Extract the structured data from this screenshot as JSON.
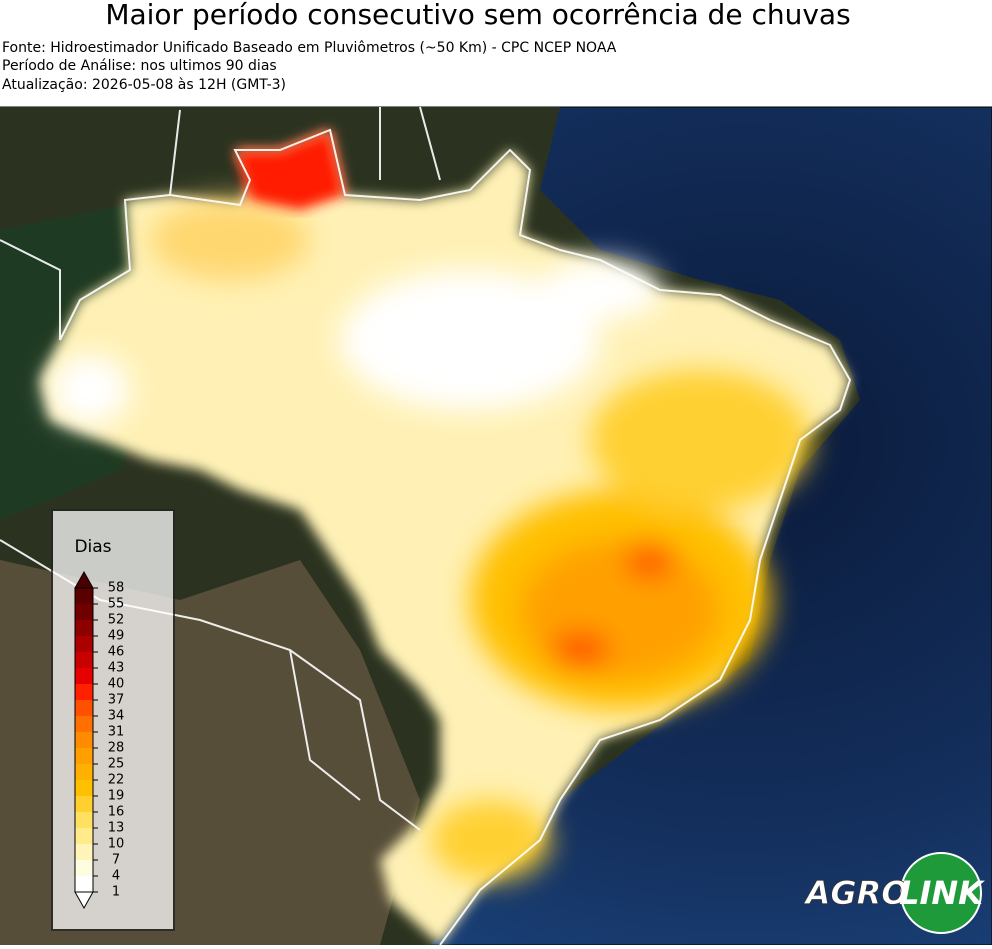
{
  "title": "Maior período consecutivo sem ocorrência de chuvas",
  "source": "Fonte: Hidroestimador Unificado Baseado em Pluviômetros (~50 Km) - CPC NCEP NOAA",
  "period": "Período de Análise: nos ultimos 90 dias",
  "updated": "Atualização: 2026-05-08 às 12H (GMT-3)",
  "colorbar": {
    "label": "Dias",
    "lim": [
      1,
      58
    ],
    "ticks": [
      1,
      4,
      7,
      10,
      13,
      16,
      19,
      22,
      25,
      28,
      31,
      34,
      37,
      40,
      43,
      46,
      49,
      52,
      55,
      58
    ],
    "colors": [
      "#ffffff",
      "#fffde0",
      "#fff5b8",
      "#ffeb8a",
      "#ffe060",
      "#ffd030",
      "#ffc000",
      "#ffb000",
      "#ffa000",
      "#ff8c00",
      "#ff7000",
      "#ff5000",
      "#ff2000",
      "#e60000",
      "#c80000",
      "#aa0000",
      "#8c0000",
      "#700000",
      "#5a0000"
    ]
  },
  "logo": {
    "left": "AGRO",
    "right": "LINK"
  }
}
